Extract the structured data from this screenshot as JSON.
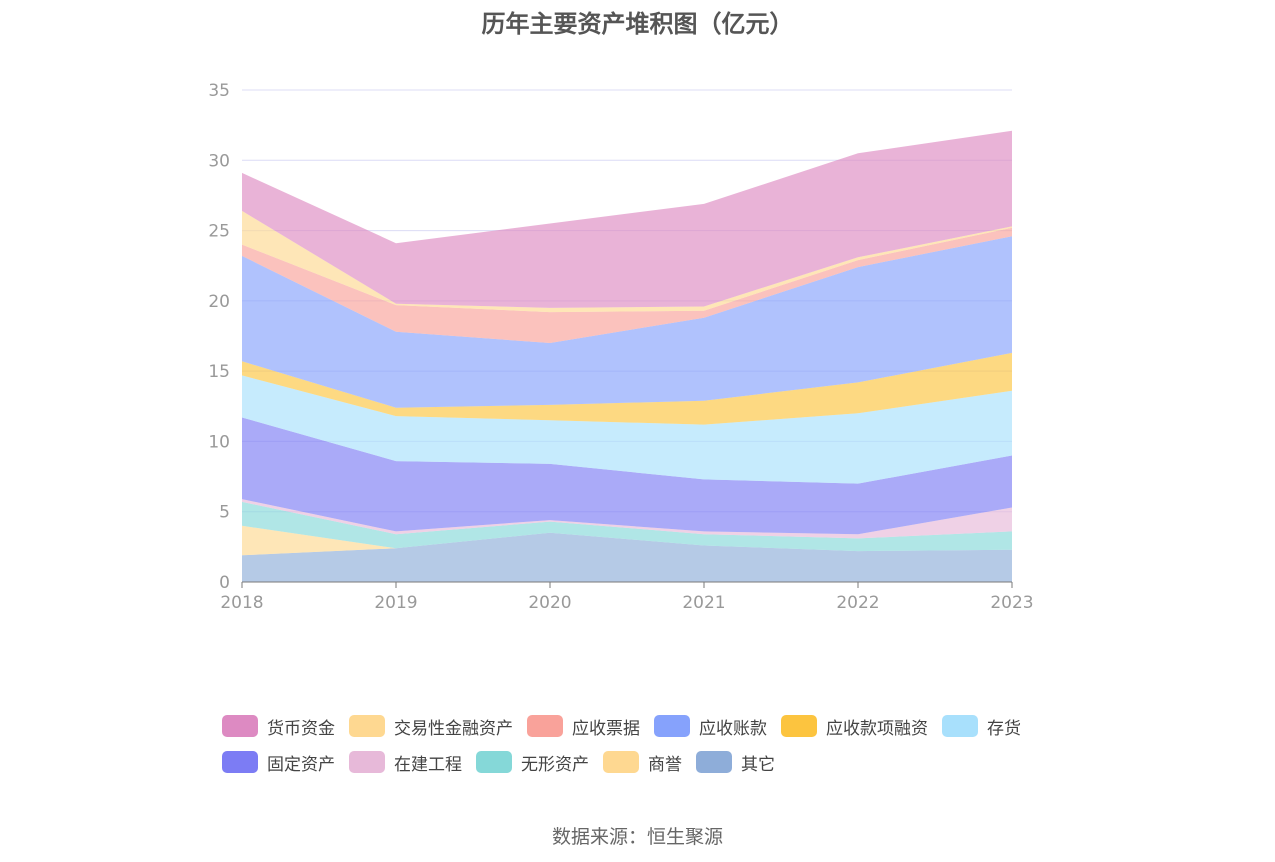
{
  "chart_data": {
    "type": "area",
    "stacked": true,
    "title": "历年主要资产堆积图（亿元）",
    "x": [
      "2018",
      "2019",
      "2020",
      "2021",
      "2022",
      "2023"
    ],
    "ylim": [
      0,
      35
    ],
    "yticks": [
      0,
      5,
      10,
      15,
      20,
      25,
      30,
      35
    ],
    "grid": true,
    "legend_position": "bottom",
    "series": [
      {
        "name": "其它",
        "color": "#8eadd9",
        "values": [
          1.9,
          2.4,
          3.5,
          2.6,
          2.2,
          2.3
        ]
      },
      {
        "name": "商誉",
        "color": "#fed891",
        "values": [
          2.1,
          0.0,
          0.0,
          0.0,
          0.0,
          0.0
        ]
      },
      {
        "name": "无形资产",
        "color": "#85d8d8",
        "values": [
          1.7,
          1.0,
          0.8,
          0.8,
          0.9,
          1.3
        ]
      },
      {
        "name": "在建工程",
        "color": "#e7b9d9",
        "values": [
          0.2,
          0.2,
          0.1,
          0.2,
          0.3,
          1.7
        ]
      },
      {
        "name": "固定资产",
        "color": "#7c7cf4",
        "values": [
          5.8,
          5.0,
          4.0,
          3.7,
          3.6,
          3.7
        ]
      },
      {
        "name": "存货",
        "color": "#a8e0fc",
        "values": [
          3.0,
          3.2,
          3.1,
          3.9,
          5.0,
          4.6
        ]
      },
      {
        "name": "应收款项融资",
        "color": "#fcc43f",
        "values": [
          1.0,
          0.6,
          1.1,
          1.7,
          2.2,
          2.7
        ]
      },
      {
        "name": "应收账款",
        "color": "#86a2fc",
        "values": [
          7.5,
          5.4,
          4.4,
          5.9,
          8.2,
          8.3
        ]
      },
      {
        "name": "应收票据",
        "color": "#f9a29a",
        "values": [
          0.8,
          1.9,
          2.2,
          0.5,
          0.5,
          0.6
        ]
      },
      {
        "name": "交易性金融资产",
        "color": "#fed891",
        "values": [
          2.4,
          0.1,
          0.3,
          0.3,
          0.2,
          0.1
        ]
      },
      {
        "name": "货币资金",
        "color": "#dd8ac2",
        "values": [
          2.7,
          4.3,
          6.0,
          7.3,
          7.4,
          6.8
        ]
      }
    ]
  },
  "legend": {
    "row1": [
      {
        "label": "货币资金",
        "color": "#dd8ac2"
      },
      {
        "label": "交易性金融资产",
        "color": "#fed891"
      },
      {
        "label": "应收票据",
        "color": "#f9a29a"
      },
      {
        "label": "应收账款",
        "color": "#86a2fc"
      },
      {
        "label": "应收款项融资",
        "color": "#fcc43f"
      },
      {
        "label": "存货",
        "color": "#a8e0fc"
      }
    ],
    "row2": [
      {
        "label": "固定资产",
        "color": "#7c7cf4"
      },
      {
        "label": "在建工程",
        "color": "#e7b9d9"
      },
      {
        "label": "无形资产",
        "color": "#85d8d8"
      },
      {
        "label": "商誉",
        "color": "#fed891"
      },
      {
        "label": "其它",
        "color": "#8eadd9"
      }
    ]
  },
  "source": "数据来源：恒生聚源"
}
